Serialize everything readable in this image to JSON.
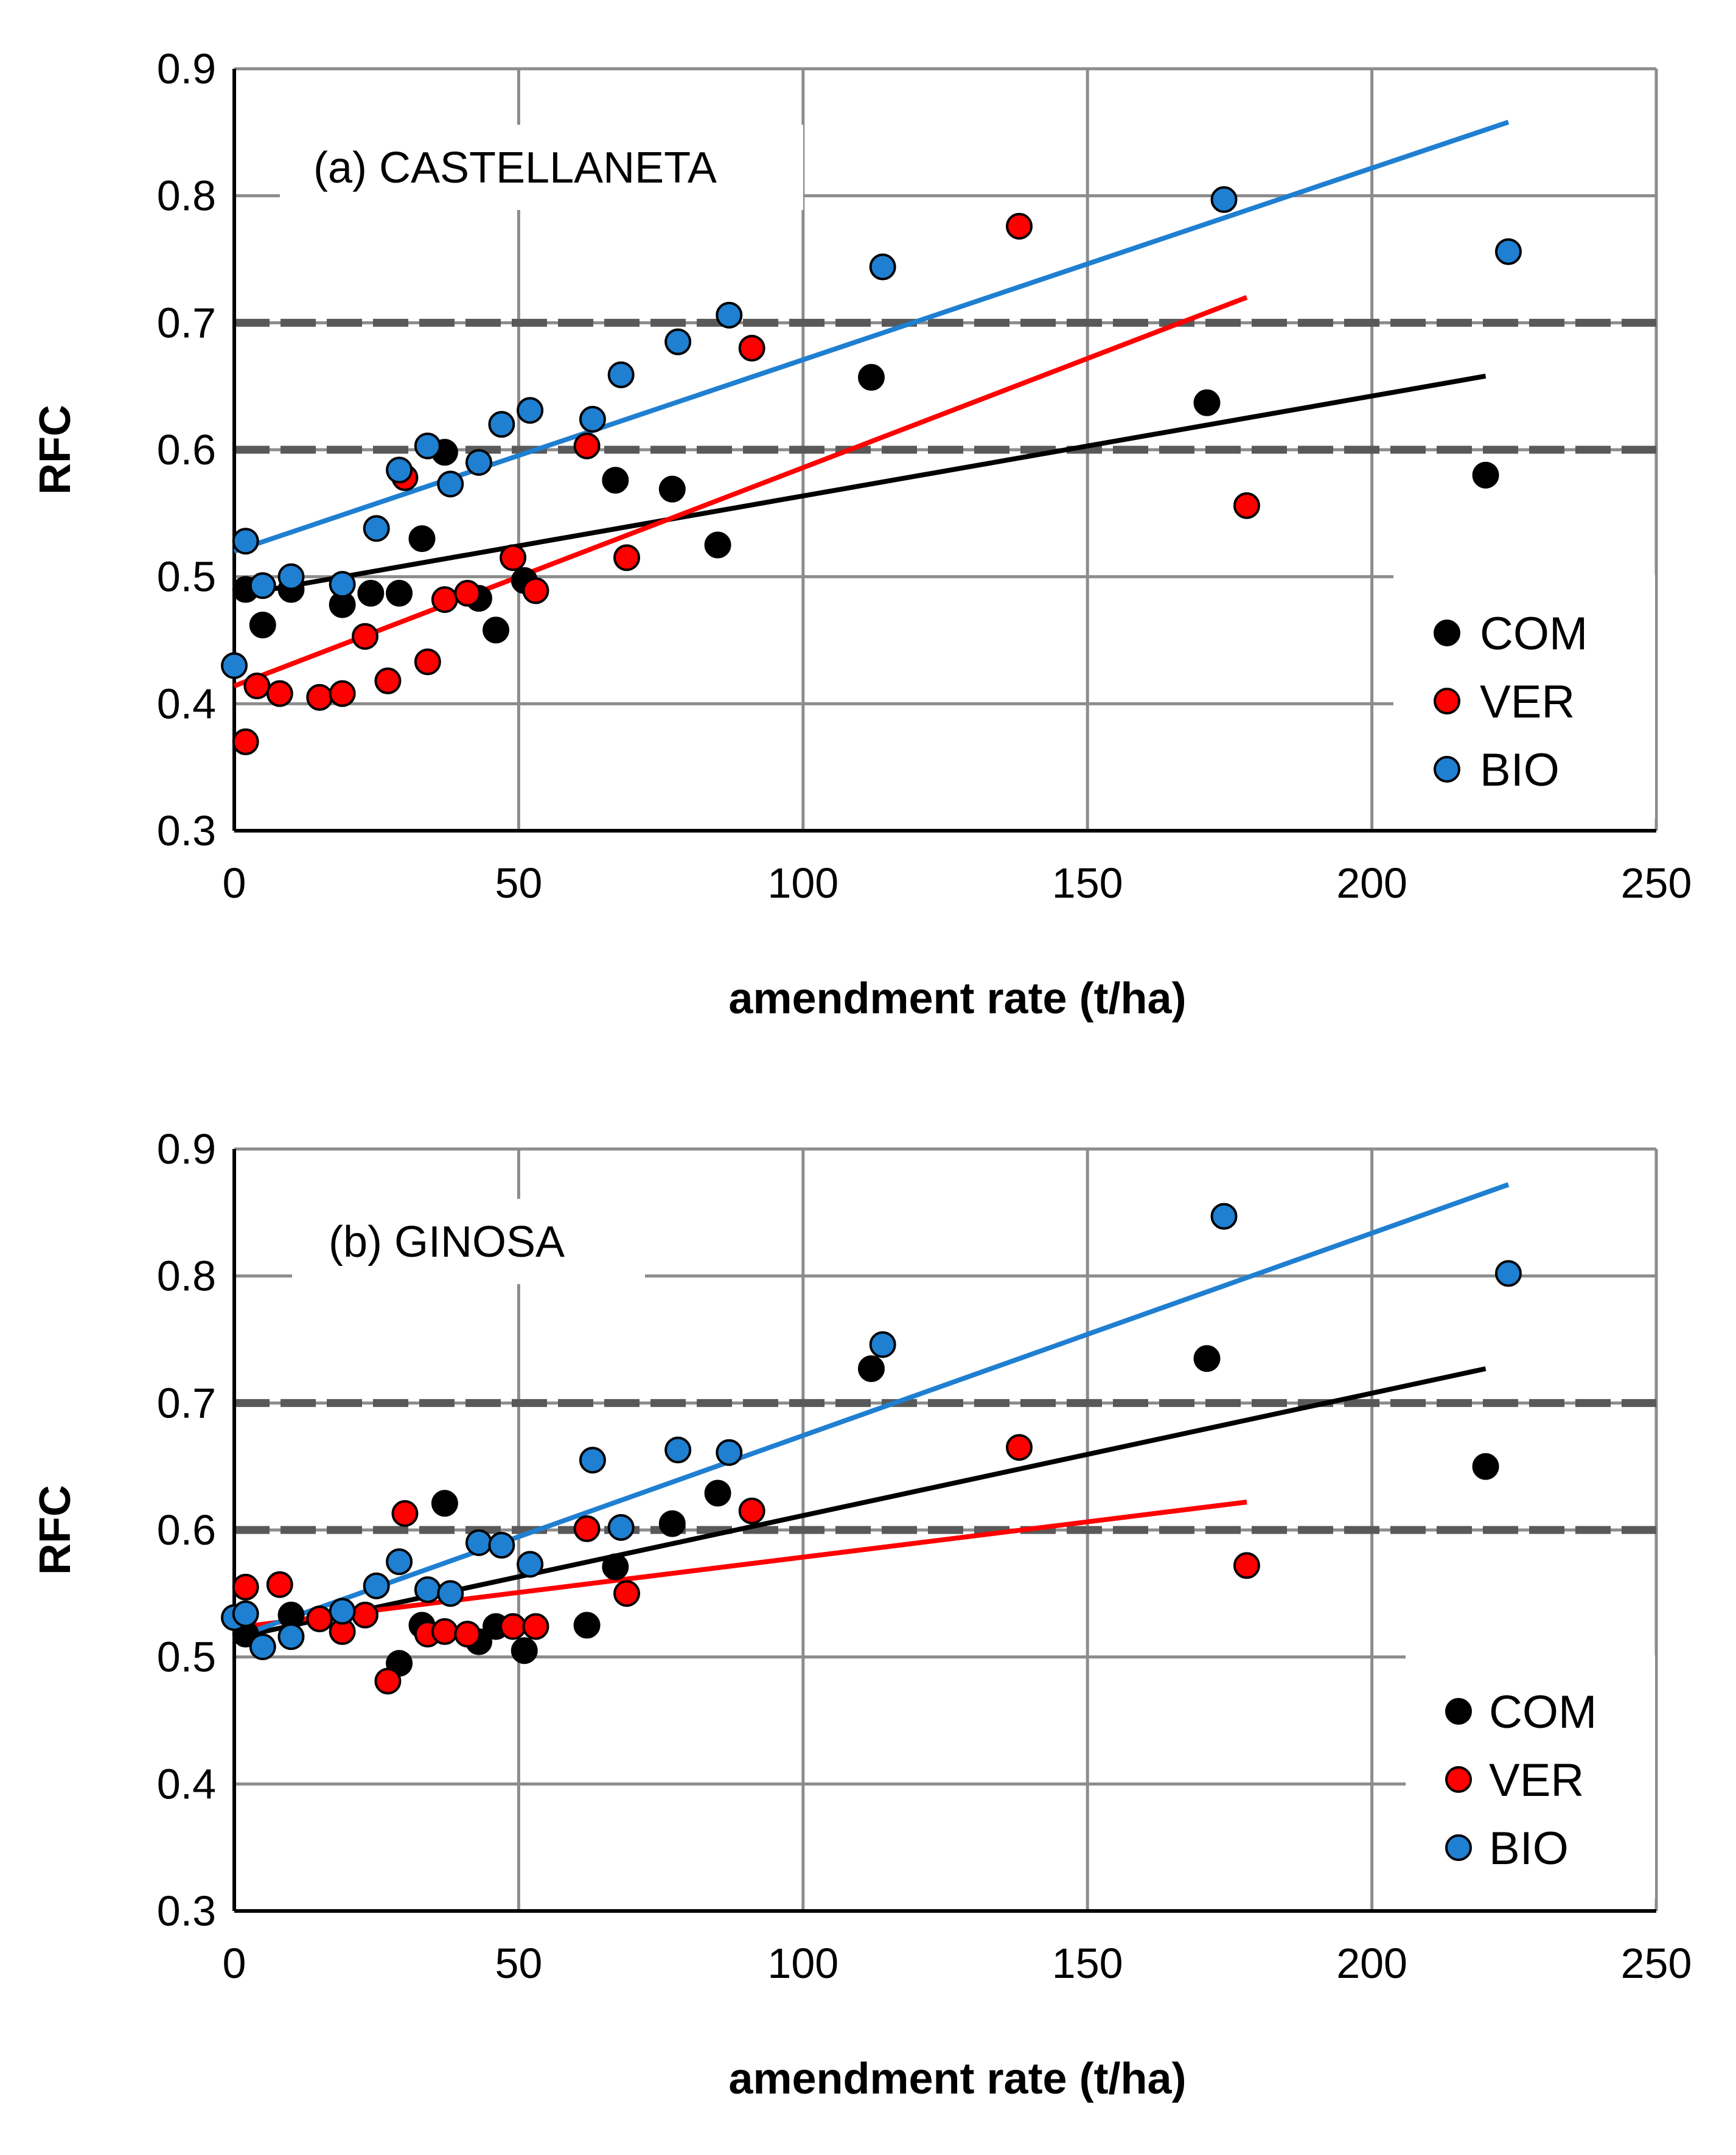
{
  "chart_data": [
    {
      "type": "scatter",
      "panel": "(a) CASTELLANETA",
      "xlabel": "amendment rate (t/ha)",
      "ylabel": "RFC",
      "xlim": [
        0,
        250
      ],
      "ylim": [
        0.3,
        0.9
      ],
      "xticks": [
        "0",
        "50",
        "100",
        "150",
        "200",
        "250"
      ],
      "yticks": [
        "0.3",
        "0.4",
        "0.5",
        "0.6",
        "0.7",
        "0.8",
        "0.9"
      ],
      "grid": true,
      "reference_lines": [
        0.6,
        0.7
      ],
      "legend_position": "bottom-right",
      "series": [
        {
          "name": "COM",
          "color": "#000000",
          "points": [
            [
              2,
              0.49
            ],
            [
              5,
              0.462
            ],
            [
              10,
              0.49
            ],
            [
              19,
              0.478
            ],
            [
              24,
              0.487
            ],
            [
              29,
              0.487
            ],
            [
              33,
              0.53
            ],
            [
              37,
              0.598
            ],
            [
              43,
              0.483
            ],
            [
              46,
              0.458
            ],
            [
              51,
              0.497
            ],
            [
              67,
              0.576
            ],
            [
              77,
              0.569
            ],
            [
              85,
              0.525
            ],
            [
              112,
              0.657
            ],
            [
              171,
              0.637
            ],
            [
              220,
              0.58
            ]
          ],
          "trend": [
            [
              0,
              0.485
            ],
            [
              220,
              0.658
            ]
          ]
        },
        {
          "name": "VER",
          "color": "#ff0000",
          "points": [
            [
              2,
              0.37
            ],
            [
              4,
              0.414
            ],
            [
              8,
              0.408
            ],
            [
              15,
              0.405
            ],
            [
              19,
              0.408
            ],
            [
              23,
              0.453
            ],
            [
              27,
              0.418
            ],
            [
              30,
              0.578
            ],
            [
              34,
              0.433
            ],
            [
              37,
              0.482
            ],
            [
              41,
              0.487
            ],
            [
              49,
              0.515
            ],
            [
              53,
              0.489
            ],
            [
              62,
              0.603
            ],
            [
              69,
              0.515
            ],
            [
              91,
              0.68
            ],
            [
              138,
              0.776
            ],
            [
              178,
              0.556
            ]
          ],
          "trend": [
            [
              0,
              0.414
            ],
            [
              178,
              0.72
            ]
          ]
        },
        {
          "name": "BIO",
          "color": "#1f7fd1",
          "points": [
            [
              0,
              0.43
            ],
            [
              2,
              0.528
            ],
            [
              5,
              0.493
            ],
            [
              10,
              0.5
            ],
            [
              19,
              0.494
            ],
            [
              25,
              0.538
            ],
            [
              29,
              0.584
            ],
            [
              34,
              0.603
            ],
            [
              38,
              0.573
            ],
            [
              43,
              0.59
            ],
            [
              47,
              0.62
            ],
            [
              52,
              0.631
            ],
            [
              63,
              0.624
            ],
            [
              68,
              0.659
            ],
            [
              78,
              0.685
            ],
            [
              87,
              0.706
            ],
            [
              114,
              0.744
            ],
            [
              174,
              0.797
            ],
            [
              224,
              0.756
            ]
          ],
          "trend": [
            [
              0,
              0.52
            ],
            [
              224,
              0.858
            ]
          ]
        }
      ]
    },
    {
      "type": "scatter",
      "panel": "(b) GINOSA",
      "xlabel": "amendment rate (t/ha)",
      "ylabel": "RFC",
      "xlim": [
        0,
        250
      ],
      "ylim": [
        0.3,
        0.9
      ],
      "xticks": [
        "0",
        "50",
        "100",
        "150",
        "200",
        "250"
      ],
      "yticks": [
        "0.3",
        "0.4",
        "0.5",
        "0.6",
        "0.7",
        "0.8",
        "0.9"
      ],
      "grid": true,
      "reference_lines": [
        0.6,
        0.7
      ],
      "legend_position": "bottom-right",
      "series": [
        {
          "name": "COM",
          "color": "#000000",
          "points": [
            [
              2,
              0.518
            ],
            [
              10,
              0.533
            ],
            [
              29,
              0.495
            ],
            [
              33,
              0.525
            ],
            [
              37,
              0.621
            ],
            [
              43,
              0.512
            ],
            [
              46,
              0.524
            ],
            [
              51,
              0.505
            ],
            [
              62,
              0.525
            ],
            [
              67,
              0.571
            ],
            [
              77,
              0.605
            ],
            [
              85,
              0.629
            ],
            [
              112,
              0.727
            ],
            [
              171,
              0.735
            ],
            [
              220,
              0.65
            ]
          ],
          "trend": [
            [
              0,
              0.515
            ],
            [
              220,
              0.727
            ]
          ]
        },
        {
          "name": "VER",
          "color": "#ff0000",
          "points": [
            [
              2,
              0.555
            ],
            [
              8,
              0.557
            ],
            [
              15,
              0.53
            ],
            [
              19,
              0.52
            ],
            [
              23,
              0.533
            ],
            [
              27,
              0.481
            ],
            [
              30,
              0.613
            ],
            [
              34,
              0.518
            ],
            [
              37,
              0.52
            ],
            [
              41,
              0.518
            ],
            [
              49,
              0.524
            ],
            [
              53,
              0.524
            ],
            [
              62,
              0.601
            ],
            [
              69,
              0.55
            ],
            [
              91,
              0.615
            ],
            [
              138,
              0.665
            ],
            [
              178,
              0.572
            ]
          ],
          "trend": [
            [
              0,
              0.523
            ],
            [
              178,
              0.622
            ]
          ]
        },
        {
          "name": "BIO",
          "color": "#1f7fd1",
          "points": [
            [
              0,
              0.531
            ],
            [
              2,
              0.534
            ],
            [
              5,
              0.508
            ],
            [
              10,
              0.516
            ],
            [
              19,
              0.536
            ],
            [
              25,
              0.556
            ],
            [
              29,
              0.575
            ],
            [
              34,
              0.553
            ],
            [
              38,
              0.55
            ],
            [
              43,
              0.59
            ],
            [
              47,
              0.588
            ],
            [
              52,
              0.573
            ],
            [
              63,
              0.655
            ],
            [
              68,
              0.602
            ],
            [
              78,
              0.663
            ],
            [
              87,
              0.661
            ],
            [
              114,
              0.746
            ],
            [
              174,
              0.847
            ],
            [
              224,
              0.802
            ]
          ],
          "trend": [
            [
              0,
              0.515
            ],
            [
              224,
              0.872
            ]
          ]
        }
      ]
    }
  ]
}
